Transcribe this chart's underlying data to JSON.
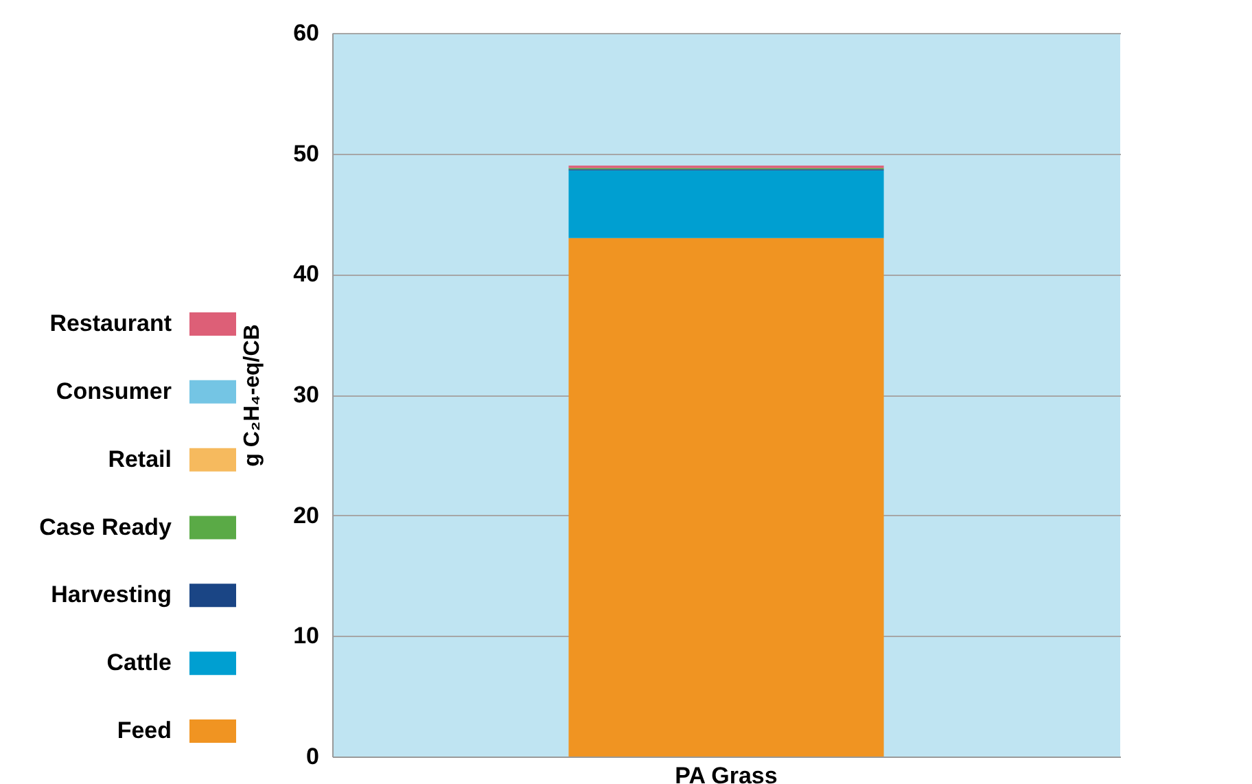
{
  "chart_data": {
    "type": "bar",
    "stacked": true,
    "ylabel": "g C₂H₄-eq/CB",
    "categories": [
      "PA Grass"
    ],
    "ylim": [
      0,
      60
    ],
    "yticks": [
      0,
      10,
      20,
      30,
      40,
      50,
      60
    ],
    "grid": "y",
    "legend": "left",
    "series": [
      {
        "name": "Feed",
        "color": "#f09422",
        "values": [
          43
        ]
      },
      {
        "name": "Cattle",
        "color": "#009fd1",
        "values": [
          5.6
        ]
      },
      {
        "name": "Harvesting",
        "color": "#1a4585",
        "values": [
          0.1
        ]
      },
      {
        "name": "Case Ready",
        "color": "#5aaa46",
        "values": [
          0.1
        ]
      },
      {
        "name": "Retail",
        "color": "#f6ba5e",
        "values": [
          0
        ]
      },
      {
        "name": "Consumer",
        "color": "#74c5e4",
        "values": [
          0
        ]
      },
      {
        "name": "Restaurant",
        "color": "#dd5f77",
        "values": [
          0.2
        ]
      }
    ]
  }
}
